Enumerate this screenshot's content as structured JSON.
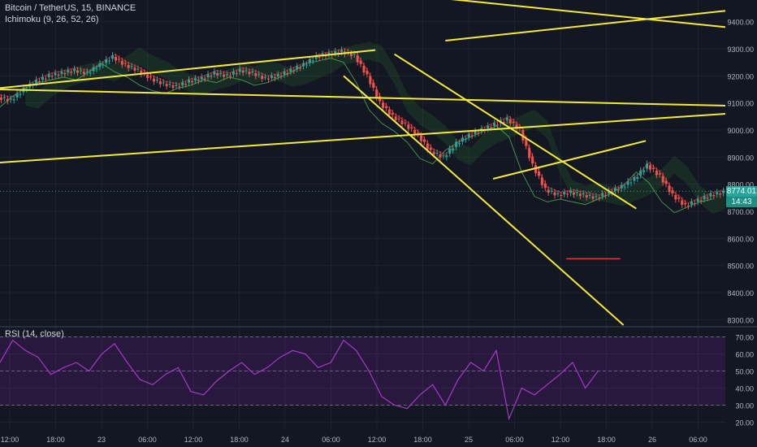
{
  "header": {
    "symbol": "Bitcoin / TetherUS, 15, BINANCE",
    "indicator": "Ichimoku (9, 26, 52, 26)",
    "rsi_label": "RSI (14, close)"
  },
  "last_price": "8774.01",
  "countdown": "14:43",
  "colors": {
    "background": "#131722",
    "grid": "#1e2230",
    "candle_up": "#26a69a",
    "candle_down": "#ef5350",
    "trendline": "#f5ea3b",
    "rsi_line": "#a33bc4",
    "rsi_band": "#7b1fa2",
    "cloud_bull": "#2e7d32",
    "cloud_bear": "#b71c1c",
    "horizontal_marker": "#e53935"
  },
  "chart_data": [
    {
      "type": "line",
      "title": "Bitcoin / TetherUS, 15, BINANCE",
      "y_ticks": [
        8300,
        8400,
        8500,
        8600,
        8700,
        8800,
        8900,
        9000,
        9100,
        9200,
        9300,
        9400
      ],
      "y_tick_labels": [
        "8300.00",
        "8400.00",
        "8500.00",
        "8600.00",
        "8700.00",
        "8800.00",
        "8900.00",
        "9000.00",
        "9100.00",
        "9200.00",
        "9300.00",
        "9400.00"
      ],
      "ylim": [
        8280,
        9480
      ],
      "x_tick_labels": [
        "12:00",
        "18:00",
        "23",
        "06:00",
        "12:00",
        "18:00",
        "24",
        "06:00",
        "12:00",
        "18:00",
        "25",
        "06:00",
        "12:00",
        "18:00",
        "26",
        "06:00"
      ],
      "series": [
        {
          "x": [
            0,
            4,
            8,
            12,
            16,
            20,
            24,
            28,
            32,
            36,
            40,
            44,
            48,
            52,
            56,
            60,
            64,
            68,
            72,
            76,
            80,
            84,
            88,
            92,
            96,
            100,
            104,
            108,
            112,
            116,
            120,
            124,
            128,
            132,
            136,
            140,
            144,
            148,
            152,
            156,
            160,
            164,
            168,
            172,
            176,
            180,
            184,
            188,
            192,
            196,
            200,
            204,
            208,
            212,
            216,
            220,
            224,
            228
          ],
          "values": [
            9120,
            9110,
            9150,
            9180,
            9200,
            9210,
            9220,
            9210,
            9240,
            9270,
            9240,
            9220,
            9190,
            9170,
            9160,
            9180,
            9190,
            9210,
            9200,
            9220,
            9210,
            9190,
            9200,
            9220,
            9240,
            9270,
            9280,
            9290,
            9275,
            9200,
            9100,
            9050,
            9020,
            8980,
            8920,
            8900,
            8950,
            8980,
            9000,
            9020,
            9040,
            9000,
            8870,
            8780,
            8760,
            8770,
            8760,
            8750,
            8770,
            8790,
            8820,
            8870,
            8830,
            8760,
            8720,
            8740,
            8760,
            8770
          ]
        }
      ],
      "trendlines": [
        {
          "from": [
            0,
            9150
          ],
          "to": [
            228,
            9090
          ]
        },
        {
          "from": [
            0,
            8880
          ],
          "to": [
            228,
            9060
          ]
        },
        {
          "from": [
            0,
            9155
          ],
          "to": [
            118,
            9295
          ]
        },
        {
          "from": [
            140,
            9485
          ],
          "to": [
            228,
            9380
          ]
        },
        {
          "from": [
            140,
            9330
          ],
          "to": [
            228,
            9440
          ]
        },
        {
          "from": [
            108,
            9200
          ],
          "to": [
            196,
            8280
          ]
        },
        {
          "from": [
            124,
            9280
          ],
          "to": [
            200,
            8710
          ]
        },
        {
          "from": [
            155,
            8820
          ],
          "to": [
            203,
            8960
          ]
        }
      ],
      "horizontal_marker": {
        "from": 178,
        "to": 195,
        "y": 8525
      }
    },
    {
      "type": "line",
      "title": "RSI (14, close)",
      "y_ticks": [
        20,
        30,
        40,
        50,
        60,
        70
      ],
      "y_tick_labels": [
        "20.00",
        "30.00",
        "40.00",
        "50.00",
        "60.00",
        "70.00"
      ],
      "ylim": [
        15,
        75
      ],
      "band": [
        30,
        70
      ],
      "midline": 50,
      "series": [
        {
          "x": [
            0,
            4,
            8,
            12,
            16,
            20,
            24,
            28,
            32,
            36,
            40,
            44,
            48,
            52,
            56,
            60,
            64,
            68,
            72,
            76,
            80,
            84,
            88,
            92,
            96,
            100,
            104,
            108,
            112,
            116,
            120,
            124,
            128,
            132,
            136,
            140,
            144,
            148,
            152,
            156,
            160,
            164,
            168,
            172,
            176,
            180,
            184,
            188
          ],
          "values": [
            55,
            68,
            62,
            58,
            48,
            52,
            55,
            50,
            60,
            66,
            55,
            45,
            42,
            48,
            52,
            38,
            36,
            44,
            50,
            55,
            48,
            52,
            58,
            62,
            60,
            52,
            55,
            68,
            62,
            50,
            35,
            30,
            28,
            36,
            42,
            30,
            45,
            55,
            50,
            62,
            22,
            40,
            36,
            42,
            48,
            55,
            40,
            50
          ]
        }
      ]
    }
  ]
}
